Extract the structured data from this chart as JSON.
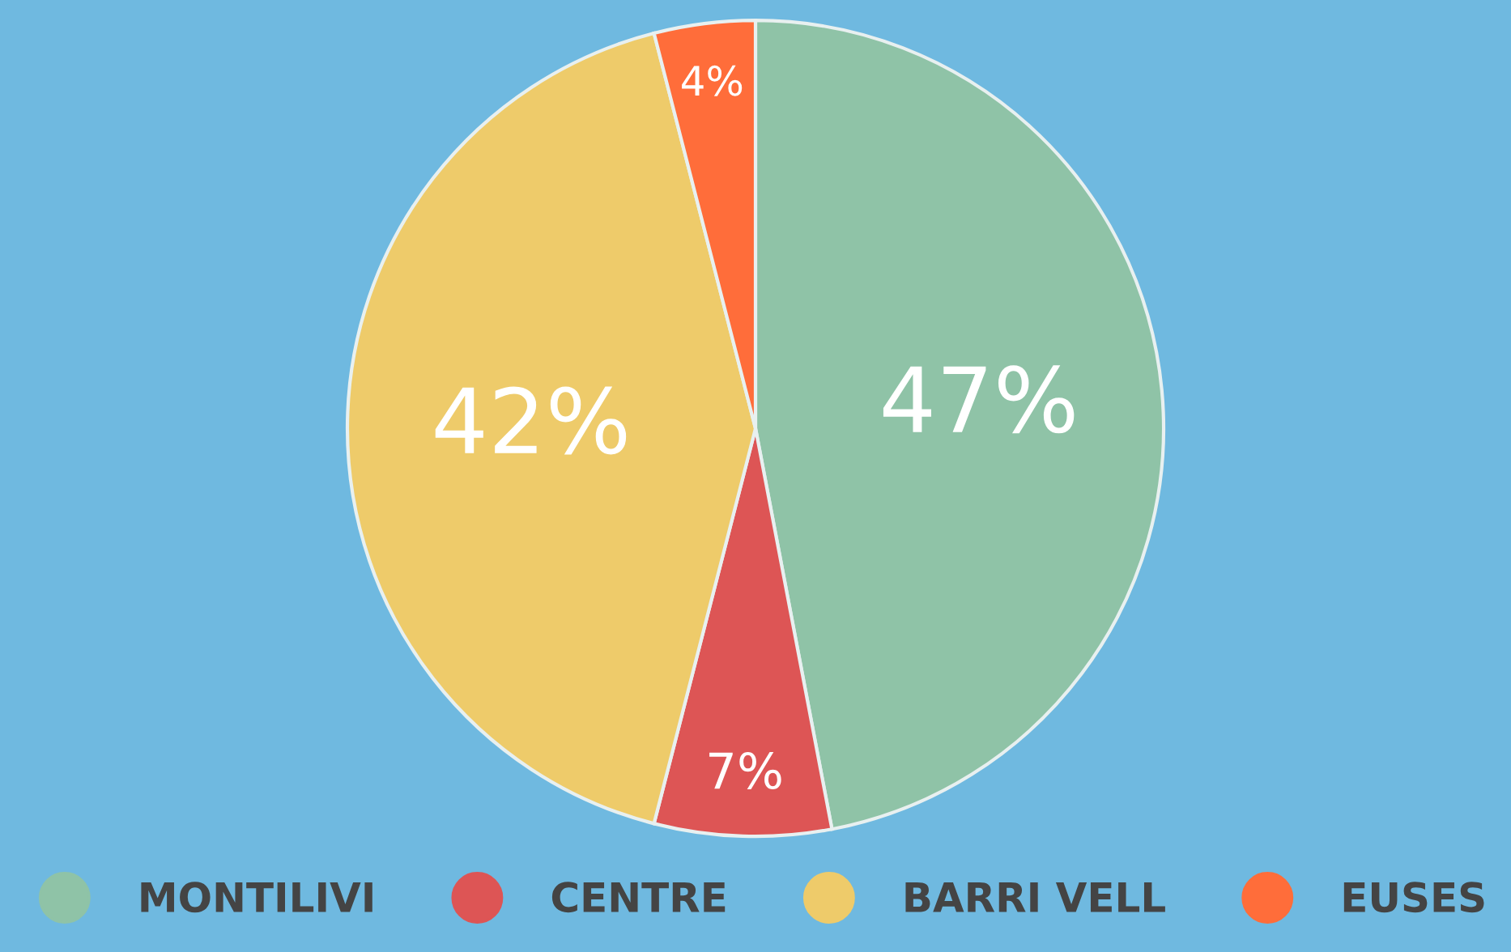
{
  "chart_data": {
    "type": "pie",
    "categories": [
      "MONTILIVI",
      "CENTRE",
      "BARRI VELL",
      "EUSES"
    ],
    "values": [
      47,
      7,
      42,
      4
    ],
    "colors": [
      "#8fc3a7",
      "#dd5555",
      "#eecb6a",
      "#ff6d3a"
    ],
    "value_labels": [
      "47%",
      "7%",
      "42%",
      "4%"
    ],
    "legend": "bottom"
  }
}
